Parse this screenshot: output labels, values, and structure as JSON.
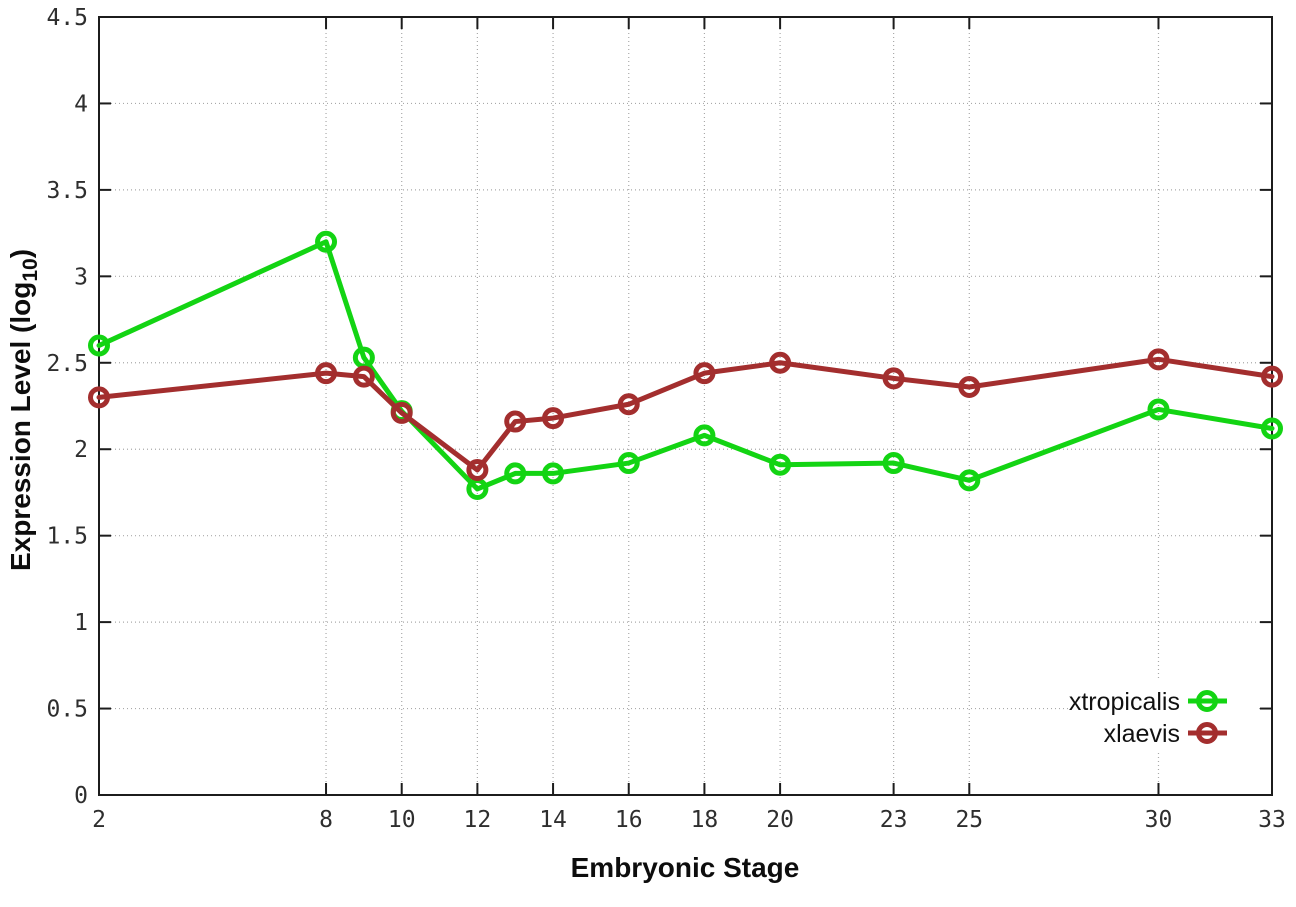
{
  "figure": {
    "xlabel": "Embryonic Stage",
    "ylabel_main": "Expression Level (log",
    "ylabel_sub": "10",
    "ylabel_end": ")"
  },
  "chart_data": {
    "type": "line",
    "title": "",
    "xlabel": "Embryonic Stage",
    "ylabel": "Expression Level (log10)",
    "x": [
      2,
      8,
      9,
      10,
      12,
      13,
      14,
      16,
      18,
      20,
      23,
      25,
      30,
      33
    ],
    "series": [
      {
        "name": "xtropicalis",
        "color": "#13d413",
        "values": [
          2.6,
          3.2,
          2.53,
          2.22,
          1.77,
          1.86,
          1.86,
          1.92,
          2.08,
          1.91,
          1.92,
          1.82,
          2.23,
          2.12
        ]
      },
      {
        "name": "xlaevis",
        "color": "#a32e2e",
        "values": [
          2.3,
          2.44,
          2.42,
          2.21,
          1.88,
          2.16,
          2.18,
          2.26,
          2.44,
          2.5,
          2.41,
          2.36,
          2.52,
          2.42
        ]
      }
    ],
    "x_ticks": [
      2,
      8,
      10,
      12,
      14,
      16,
      18,
      20,
      23,
      25,
      30,
      33
    ],
    "y_ticks": [
      0,
      0.5,
      1,
      1.5,
      2,
      2.5,
      3,
      3.5,
      4,
      4.5
    ],
    "xlim": [
      2,
      33
    ],
    "ylim": [
      0,
      4.5
    ],
    "grid": true,
    "marker": "open-circle",
    "legend_position": "bottom-right"
  },
  "colors": {
    "background": "#ffffff",
    "axis": "#1c1c1c",
    "grid": "#a9a9a9",
    "tick_label": "#2e2e2e"
  }
}
